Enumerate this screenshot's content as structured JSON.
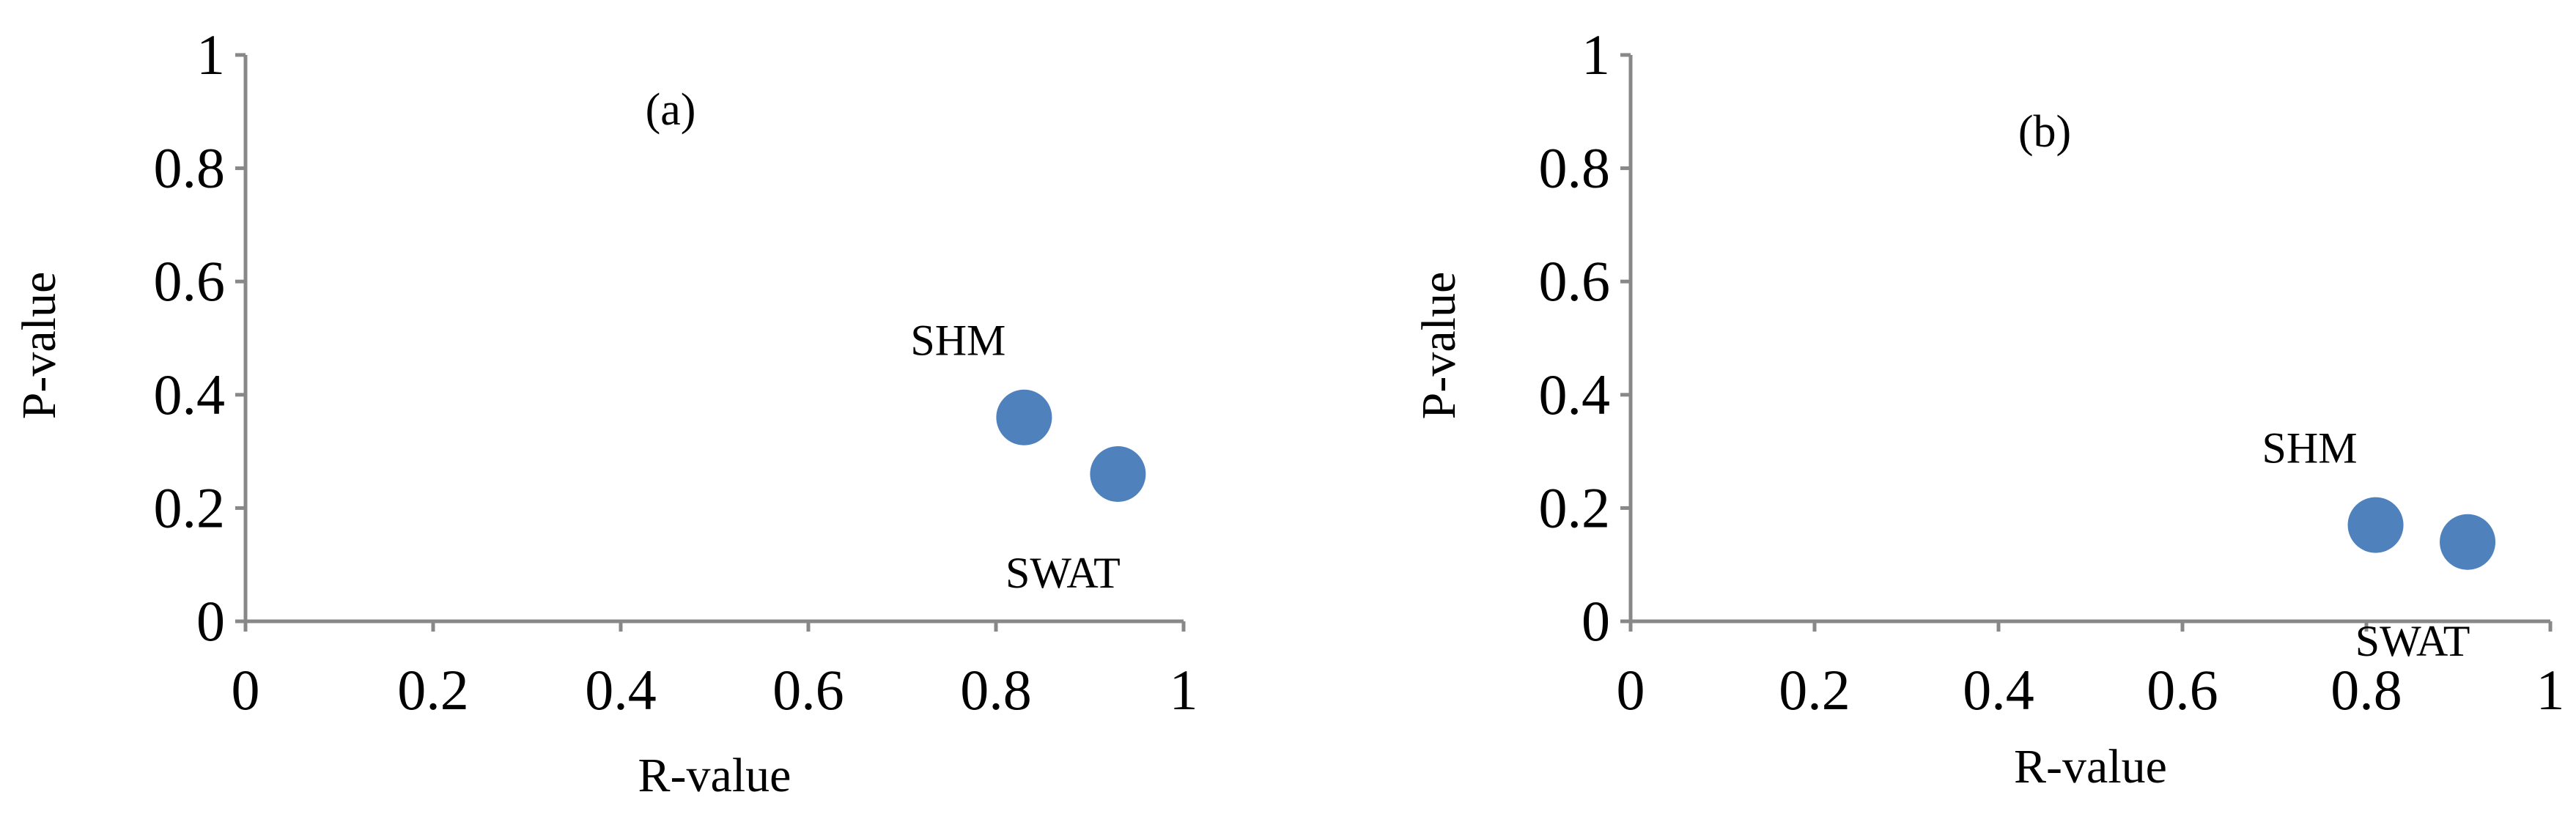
{
  "chart_data": [
    {
      "type": "scatter",
      "panel_label": "(a)",
      "xlabel": "R-value",
      "ylabel": "P-value",
      "xlim": [
        0,
        1
      ],
      "ylim": [
        0,
        1
      ],
      "xticks": [
        "0",
        "0.2",
        "0.4",
        "0.6",
        "0.8",
        "1"
      ],
      "yticks": [
        "0",
        "0.2",
        "0.4",
        "0.6",
        "0.8",
        "1"
      ],
      "grid": false,
      "marker_color": "#4f81bd",
      "points": [
        {
          "label": "SHM",
          "x": 0.83,
          "y": 0.36,
          "label_position": "upper-left"
        },
        {
          "label": "SWAT",
          "x": 0.93,
          "y": 0.26,
          "label_position": "below"
        }
      ]
    },
    {
      "type": "scatter",
      "panel_label": "(b)",
      "xlabel": "R-value",
      "ylabel": "P-value",
      "xlim": [
        0,
        1
      ],
      "ylim": [
        0,
        1
      ],
      "xticks": [
        "0",
        "0.2",
        "0.4",
        "0.6",
        "0.8",
        "1"
      ],
      "yticks": [
        "0",
        "0.2",
        "0.4",
        "0.6",
        "0.8",
        "1"
      ],
      "grid": false,
      "marker_color": "#4f81bd",
      "points": [
        {
          "label": "SHM",
          "x": 0.81,
          "y": 0.17,
          "label_position": "upper-left"
        },
        {
          "label": "SWAT",
          "x": 0.91,
          "y": 0.14,
          "label_position": "below"
        }
      ]
    }
  ]
}
